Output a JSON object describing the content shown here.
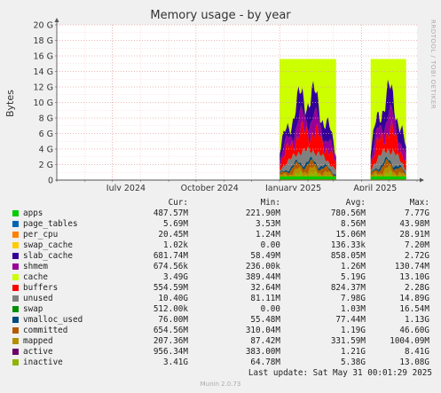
{
  "chart_data": {
    "type": "area",
    "title": "Memory usage - by year",
    "ylabel": "Bytes",
    "y_ticks": [
      "0",
      "2 G",
      "4 G",
      "6 G",
      "8 G",
      "10 G",
      "12 G",
      "14 G",
      "16 G",
      "18 G",
      "20 G"
    ],
    "ylim": [
      0,
      20
    ],
    "x_ticks": [
      "July 2024",
      "October 2024",
      "January 2025",
      "April 2025"
    ],
    "grid": true,
    "x_range": [
      "2024-05-01",
      "2025-06-01"
    ],
    "blocks": [
      {
        "start": "2025-01-01",
        "end": "2025-03-04",
        "top_gb": 15.6
      },
      {
        "start": "2025-04-11",
        "end": "2025-05-20",
        "top_gb": 15.6
      }
    ],
    "columns": [
      "Cur:",
      "Min:",
      "Avg:",
      "Max:"
    ],
    "series": [
      {
        "name": "apps",
        "color": "#00cc00",
        "cur": "487.57M",
        "min": "221.90M",
        "avg": "780.56M",
        "max": "7.77G"
      },
      {
        "name": "page_tables",
        "color": "#0066b3",
        "cur": "5.69M",
        "min": "3.53M",
        "avg": "8.56M",
        "max": "43.98M"
      },
      {
        "name": "per_cpu",
        "color": "#ff8000",
        "cur": "20.45M",
        "min": "1.24M",
        "avg": "15.06M",
        "max": "28.91M"
      },
      {
        "name": "swap_cache",
        "color": "#ffcc00",
        "cur": "1.02k",
        "min": "0.00",
        "avg": "136.33k",
        "max": "7.20M"
      },
      {
        "name": "slab_cache",
        "color": "#330099",
        "cur": "681.74M",
        "min": "58.49M",
        "avg": "858.05M",
        "max": "2.72G"
      },
      {
        "name": "shmem",
        "color": "#990099",
        "cur": "674.56k",
        "min": "236.00k",
        "avg": "1.26M",
        "max": "130.74M"
      },
      {
        "name": "cache",
        "color": "#ccff00",
        "cur": "3.49G",
        "min": "389.44M",
        "avg": "5.19G",
        "max": "13.10G"
      },
      {
        "name": "buffers",
        "color": "#ff0000",
        "cur": "554.59M",
        "min": "32.64M",
        "avg": "824.37M",
        "max": "2.28G"
      },
      {
        "name": "unused",
        "color": "#808080",
        "cur": "10.40G",
        "min": "81.11M",
        "avg": "7.98G",
        "max": "14.89G"
      },
      {
        "name": "swap",
        "color": "#008f00",
        "cur": "512.00k",
        "min": "0.00",
        "avg": "1.03M",
        "max": "16.54M"
      },
      {
        "name": "vmalloc_used",
        "color": "#00487d",
        "cur": "76.00M",
        "min": "55.48M",
        "avg": "77.44M",
        "max": "1.13G"
      },
      {
        "name": "committed",
        "color": "#b35a00",
        "cur": "654.56M",
        "min": "310.04M",
        "avg": "1.19G",
        "max": "46.60G"
      },
      {
        "name": "mapped",
        "color": "#b38f00",
        "cur": "207.36M",
        "min": "87.42M",
        "avg": "331.59M",
        "max": "1004.09M"
      },
      {
        "name": "active",
        "color": "#6b006b",
        "cur": "956.34M",
        "min": "383.00M",
        "avg": "1.21G",
        "max": "8.41G"
      },
      {
        "name": "inactive",
        "color": "#8fb300",
        "cur": "3.41G",
        "min": "64.78M",
        "avg": "5.38G",
        "max": "13.08G"
      }
    ]
  },
  "watermark": "RRDTOOL / TOBI OETIKER",
  "last_update": "Last update: Sat May 31 00:01:29 2025",
  "version": "Munin 2.0.73"
}
